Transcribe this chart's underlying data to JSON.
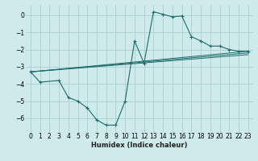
{
  "xlabel": "Humidex (Indice chaleur)",
  "bg_color": "#ceeaea",
  "grid_color": "#aacece",
  "line_color": "#1e6b6b",
  "xlim": [
    -0.5,
    23.5
  ],
  "ylim": [
    -6.8,
    0.6
  ],
  "yticks": [
    0,
    -1,
    -2,
    -3,
    -4,
    -5,
    -6
  ],
  "xticks": [
    0,
    1,
    2,
    3,
    4,
    5,
    6,
    7,
    8,
    9,
    10,
    11,
    12,
    13,
    14,
    15,
    16,
    17,
    18,
    19,
    20,
    21,
    22,
    23
  ],
  "series_main": {
    "x": [
      0,
      1,
      3,
      4,
      5,
      6,
      7,
      8,
      9,
      10,
      11,
      12,
      13,
      14,
      15,
      16,
      17,
      18,
      19,
      20,
      21,
      22,
      23
    ],
    "y": [
      -3.3,
      -3.9,
      -3.8,
      -4.8,
      -5.0,
      -5.4,
      -6.1,
      -6.4,
      -6.4,
      -5.0,
      -1.5,
      -2.8,
      0.2,
      0.05,
      -0.1,
      -0.05,
      -1.25,
      -1.5,
      -1.8,
      -1.8,
      -2.0,
      -2.1,
      -2.1
    ]
  },
  "series_trend": [
    {
      "x": [
        0,
        23
      ],
      "y": [
        -3.3,
        -2.1
      ]
    },
    {
      "x": [
        0,
        23
      ],
      "y": [
        -3.3,
        -2.2
      ]
    },
    {
      "x": [
        0,
        23
      ],
      "y": [
        -3.3,
        -2.3
      ]
    }
  ]
}
